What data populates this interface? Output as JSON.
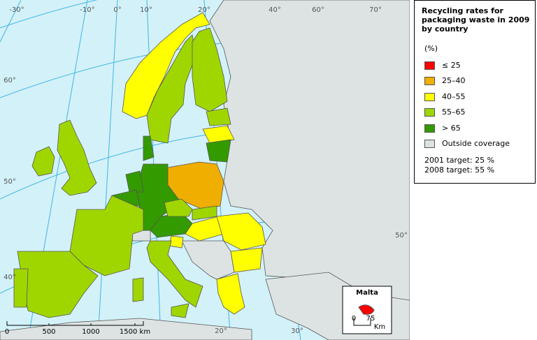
{
  "legend": {
    "title": "Recycling rates for packaging waste in 2009 by country",
    "unit": "(%)",
    "items": [
      {
        "label": "≤ 25",
        "color": "#ff0000"
      },
      {
        "label": "25–40",
        "color": "#f0ae00"
      },
      {
        "label": "40–55",
        "color": "#ffff00"
      },
      {
        "label": "55–65",
        "color": "#9fd600"
      },
      {
        "label": "> 65",
        "color": "#339a00"
      },
      {
        "label": "Outside coverage",
        "color": "#dde3e3"
      }
    ],
    "targets": [
      "2001 target: 25 %",
      "2008 target: 55 %"
    ]
  },
  "map": {
    "graticule_labels": [
      "-30°",
      "-10°",
      "0°",
      "10°",
      "20°",
      "40°",
      "60°",
      "70°",
      "60°",
      "50°",
      "40°",
      "50°",
      "20°",
      "30°"
    ],
    "scale_bar": {
      "labels": [
        "0",
        "500",
        "1000",
        "1500 km"
      ]
    },
    "inset": {
      "title": "Malta",
      "scale_labels": [
        "0",
        "75"
      ],
      "unit": "Km"
    }
  }
}
